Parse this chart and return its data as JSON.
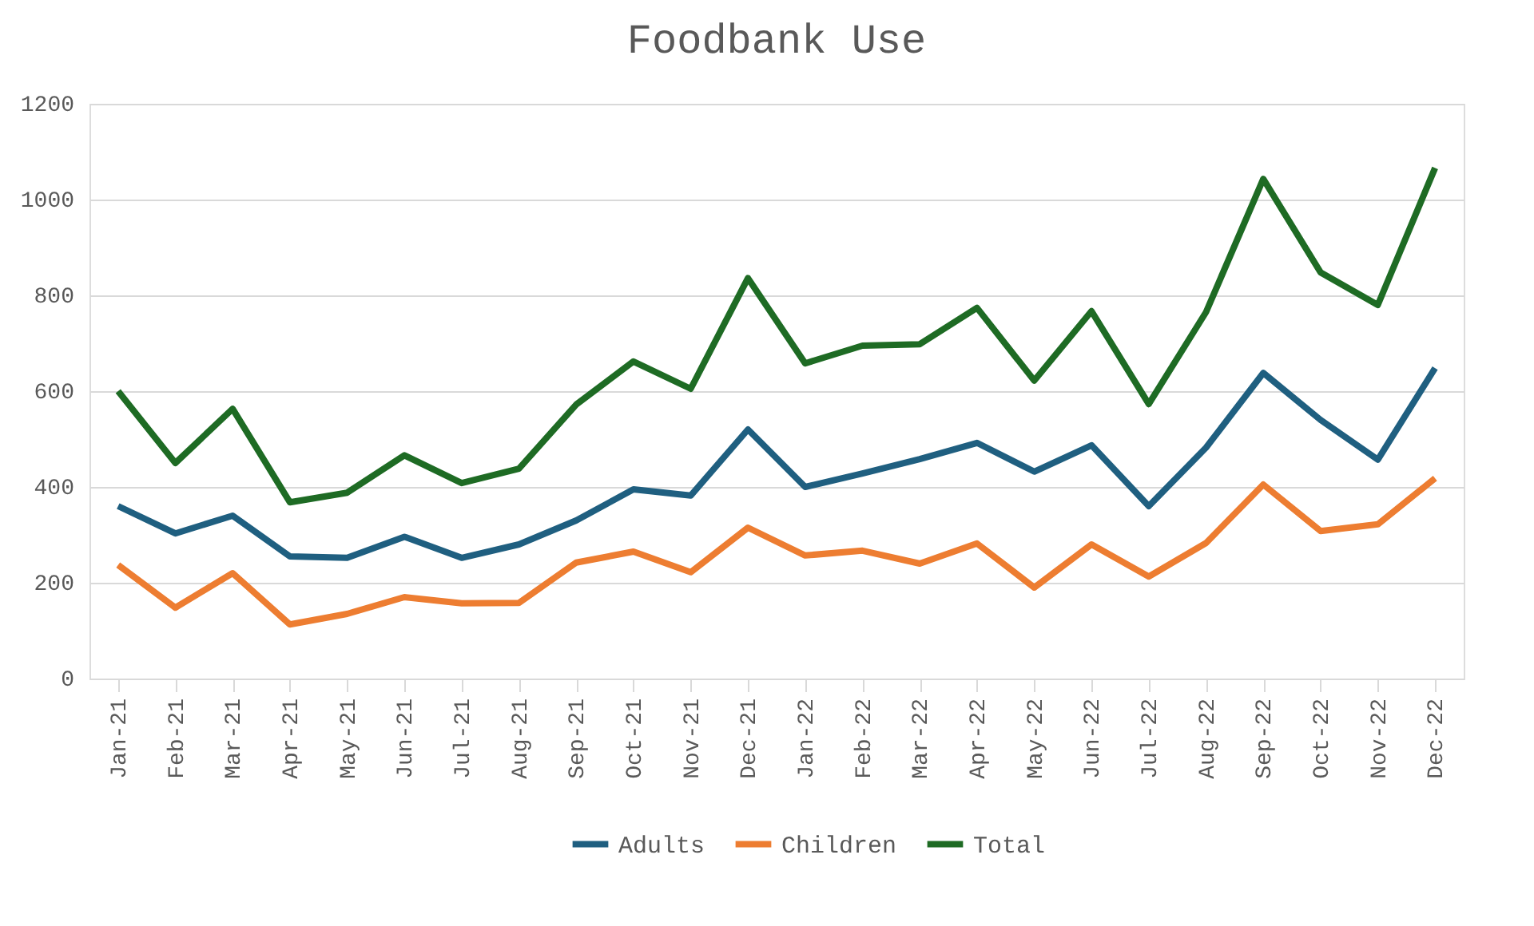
{
  "chart_data": {
    "type": "line",
    "title": "Foodbank Use",
    "categories": [
      "Jan-21",
      "Feb-21",
      "Mar-21",
      "Apr-21",
      "May-21",
      "Jun-21",
      "Jul-21",
      "Aug-21",
      "Sep-21",
      "Oct-21",
      "Nov-21",
      "Dec-21",
      "Jan-22",
      "Feb-22",
      "Mar-22",
      "Apr-22",
      "May-22",
      "Jun-22",
      "Jul-22",
      "Aug-22",
      "Sep-22",
      "Oct-22",
      "Nov-22",
      "Dec-22"
    ],
    "series": [
      {
        "name": "Adults",
        "color": "#1f5f80",
        "values": [
          360,
          303,
          340,
          255,
          252,
          296,
          252,
          280,
          330,
          395,
          382,
          520,
          400,
          428,
          458,
          492,
          432,
          487,
          360,
          482,
          638,
          540,
          457,
          648
        ]
      },
      {
        "name": "Children",
        "color": "#ed7d31",
        "values": [
          237,
          148,
          220,
          113,
          135,
          170,
          157,
          158,
          242,
          265,
          222,
          315,
          257,
          267,
          240,
          282,
          190,
          280,
          213,
          283,
          405,
          308,
          322,
          418
        ]
      },
      {
        "name": "Total",
        "color": "#1e6b24",
        "values": [
          600,
          450,
          563,
          368,
          388,
          466,
          408,
          438,
          572,
          662,
          605,
          836,
          658,
          695,
          698,
          774,
          622,
          767,
          573,
          765,
          1043,
          848,
          780,
          1066
        ]
      }
    ],
    "ylim": [
      0,
      1200
    ],
    "yticks": [
      0,
      200,
      400,
      600,
      800,
      1000,
      1200
    ],
    "grid": "y",
    "legend": "bottom",
    "marker": "none",
    "line_style": "solid"
  }
}
